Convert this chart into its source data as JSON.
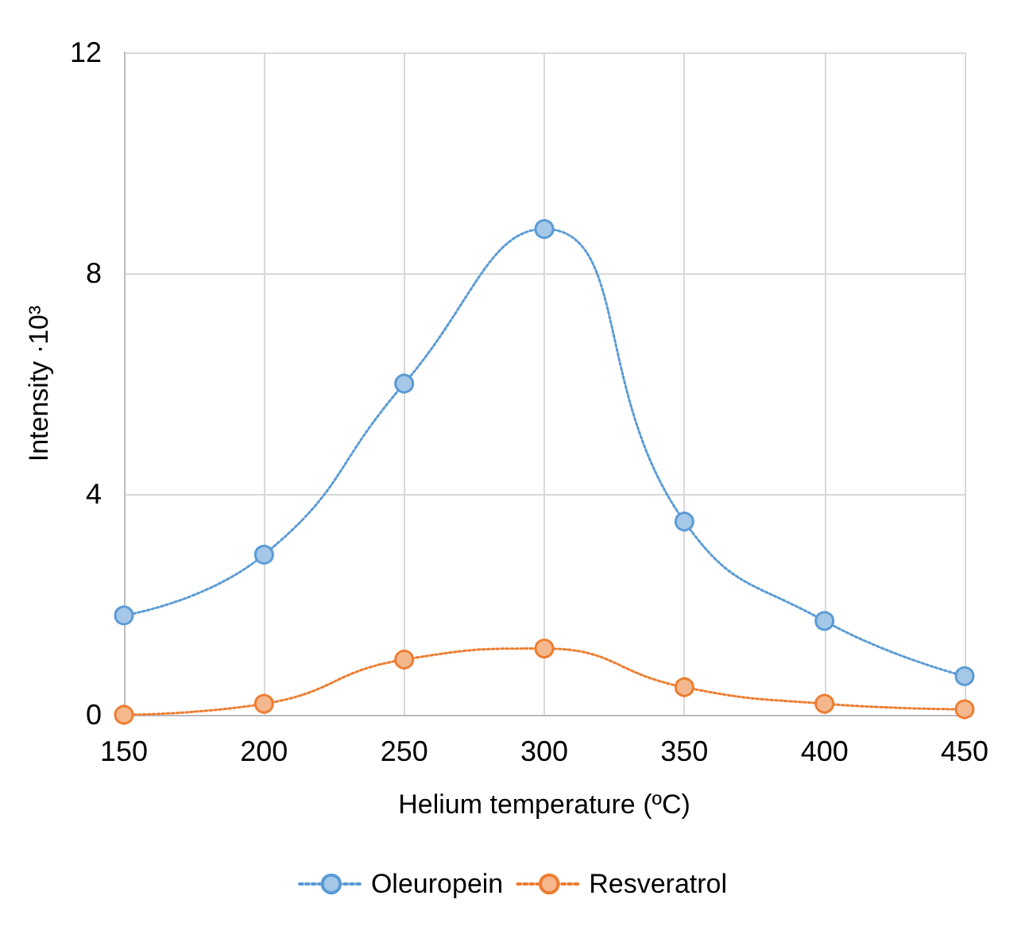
{
  "chart_data": {
    "type": "line",
    "xlabel": "Helium temperature (ºC)",
    "ylabel": "Intensity ·10³",
    "x": [
      150,
      200,
      250,
      300,
      350,
      400,
      450
    ],
    "xlim": [
      150,
      450
    ],
    "xticks": [
      150,
      200,
      250,
      300,
      350,
      400,
      450
    ],
    "ylim": [
      0,
      12
    ],
    "yticks": [
      0,
      4,
      8,
      12
    ],
    "grid": true,
    "legend": "bottom",
    "marker": "circle",
    "line_style": "dotted",
    "series": [
      {
        "name": "Oleuropein",
        "color": "#5b9bd5",
        "values": [
          1.8,
          2.9,
          6.0,
          8.8,
          3.5,
          1.7,
          0.7
        ]
      },
      {
        "name": "Resveratrol",
        "color": "#ed7d31",
        "values": [
          0,
          0.2,
          1.0,
          1.2,
          0.5,
          0.2,
          0.1
        ]
      }
    ]
  }
}
